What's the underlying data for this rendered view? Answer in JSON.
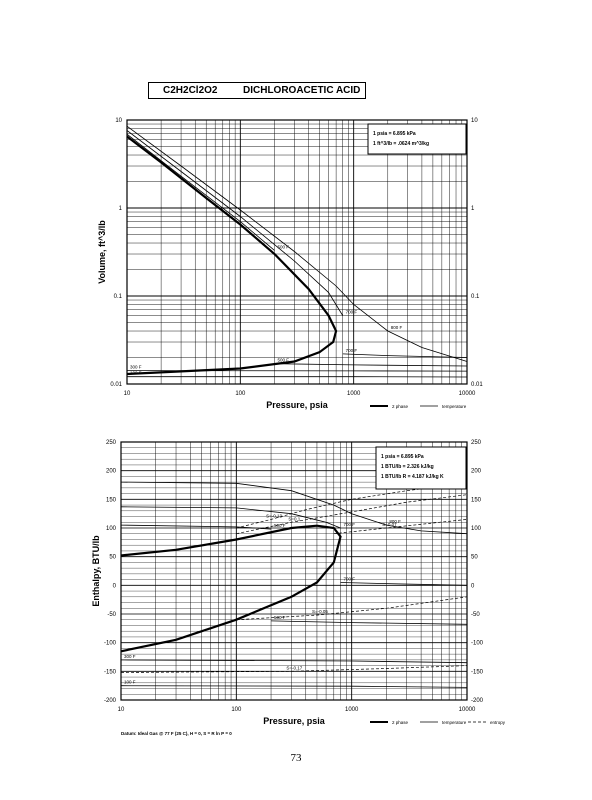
{
  "title": {
    "formula": "C2H2Cl2O2",
    "name": "DICHLOROACETIC ACID"
  },
  "page_number": "73",
  "chart_data": [
    {
      "type": "line",
      "xlabel": "Pressure,  psia",
      "ylabel": "Volume, ft^3/lb",
      "xscale": "log",
      "yscale": "log",
      "xlim": [
        10,
        10000
      ],
      "ylim": [
        0.01,
        10
      ],
      "x_ticks": [
        "10",
        "100",
        "1000",
        "10000"
      ],
      "y_ticks_left": [
        "0.01",
        "0.1",
        "1",
        "10"
      ],
      "y_ticks_right": [
        "0.01",
        "0.1",
        "1",
        "10"
      ],
      "conversion_box": [
        "1 psia  =  6.895 kPa",
        "1 ft^3/lb  =  .0624 m^3/kg"
      ],
      "legend": {
        "two_phase": "2 phase",
        "temperature": "temperature"
      },
      "isotherm_labels": [
        "800 F",
        "700 F",
        "500 F",
        "300 F",
        "100 F"
      ],
      "series": [
        {
          "kind": "two-phase",
          "name": "2 phase",
          "points": [
            [
              10,
              6.5
            ],
            [
              20,
              3.3
            ],
            [
              50,
              1.3
            ],
            [
              100,
              0.65
            ],
            [
              200,
              0.3
            ],
            [
              400,
              0.12
            ],
            [
              600,
              0.06
            ],
            [
              700,
              0.04
            ],
            [
              660,
              0.03
            ],
            [
              500,
              0.023
            ],
            [
              300,
              0.018
            ],
            [
              100,
              0.015
            ],
            [
              10,
              0.013
            ]
          ]
        },
        {
          "kind": "temperature",
          "label": "800 F",
          "points": [
            [
              10,
              8.5
            ],
            [
              30,
              3.0
            ],
            [
              100,
              0.95
            ],
            [
              300,
              0.32
            ],
            [
              700,
              0.13
            ],
            [
              1000,
              0.08
            ],
            [
              2000,
              0.04
            ],
            [
              4000,
              0.026
            ],
            [
              10000,
              0.018
            ]
          ]
        },
        {
          "kind": "temperature",
          "label": "700 F",
          "points": [
            [
              10,
              7.6
            ],
            [
              30,
              2.6
            ],
            [
              100,
              0.8
            ],
            [
              300,
              0.25
            ],
            [
              600,
              0.11
            ],
            [
              800,
              0.06
            ]
          ]
        },
        {
          "kind": "temperature",
          "label": "700 F",
          "points": [
            [
              800,
              0.022
            ],
            [
              2000,
              0.021
            ],
            [
              10000,
              0.02
            ]
          ]
        },
        {
          "kind": "temperature",
          "label": "500 F",
          "points": [
            [
              10,
              6.9
            ],
            [
              30,
              2.3
            ],
            [
              100,
              0.7
            ],
            [
              200,
              0.33
            ]
          ]
        },
        {
          "kind": "temperature",
          "label": "500 F",
          "points": [
            [
              200,
              0.017
            ],
            [
              1000,
              0.0165
            ],
            [
              10000,
              0.016
            ]
          ]
        },
        {
          "kind": "temperature",
          "label": "300 F",
          "points": [
            [
              10,
              0.0142
            ],
            [
              1000,
              0.0141
            ],
            [
              10000,
              0.014
            ]
          ]
        },
        {
          "kind": "temperature",
          "label": "100 F",
          "points": [
            [
              10,
              0.0121
            ],
            [
              1000,
              0.0121
            ],
            [
              10000,
              0.012
            ]
          ]
        }
      ]
    },
    {
      "type": "line",
      "xlabel": "Pressure,  psia",
      "ylabel": "Enthalpy, BTU/lb",
      "xscale": "log",
      "xlim": [
        10,
        10000
      ],
      "ylim": [
        -200,
        250
      ],
      "x_ticks": [
        "10",
        "100",
        "1000",
        "10000"
      ],
      "y_ticks_left": [
        "-200",
        "-150",
        "-100",
        "-50",
        "0",
        "50",
        "100",
        "150",
        "200",
        "250"
      ],
      "y_ticks_right": [
        "-200",
        "-150",
        "-100",
        "-50",
        "0",
        "50",
        "100",
        "150",
        "200",
        "250"
      ],
      "conversion_box": [
        "1 psia  =  6.895 kPa",
        "1 BTU/lb  =  2.326 kJ/kg",
        "1 BTU/lb R  =  4.187 kJ/kg K"
      ],
      "footnote": "Datum: Ideal Gas @ 77 F (25 C),  H = 0,  S = R ln P = 0",
      "legend": {
        "two_phase": "2 phase",
        "temperature": "temperature",
        "entropy": "entropy"
      },
      "isotherm_labels": [
        "800 F",
        "700 F",
        "500 F",
        "300 F",
        "100 F"
      ],
      "entropy_labels": [
        "S=-0.13",
        "S=0.1",
        "S=0.07",
        "S=-0.05",
        "S=-0.17"
      ],
      "series": [
        {
          "kind": "two-phase",
          "name": "2 phase",
          "points": [
            [
              10,
              52
            ],
            [
              30,
              62
            ],
            [
              100,
              80
            ],
            [
              300,
              100
            ],
            [
              500,
              104
            ],
            [
              700,
              100
            ],
            [
              800,
              85
            ],
            [
              700,
              40
            ],
            [
              500,
              5
            ],
            [
              300,
              -20
            ],
            [
              100,
              -60
            ],
            [
              30,
              -95
            ],
            [
              10,
              -115
            ]
          ]
        },
        {
          "kind": "temperature",
          "label": "800 F",
          "points": [
            [
              10,
              180
            ],
            [
              100,
              178
            ],
            [
              300,
              165
            ],
            [
              700,
              140
            ],
            [
              1000,
              125
            ],
            [
              2000,
              105
            ],
            [
              4000,
              95
            ],
            [
              10000,
              90
            ]
          ]
        },
        {
          "kind": "temperature",
          "label": "700 F",
          "points": [
            [
              10,
              137
            ],
            [
              100,
              135
            ],
            [
              300,
              125
            ],
            [
              600,
              110
            ],
            [
              800,
              100
            ]
          ]
        },
        {
          "kind": "temperature",
          "label": "700 F",
          "points": [
            [
              800,
              5
            ],
            [
              2000,
              3
            ],
            [
              10000,
              0
            ]
          ]
        },
        {
          "kind": "temperature",
          "label": "500 F",
          "points": [
            [
              10,
              105
            ],
            [
              100,
              102
            ],
            [
              200,
              98
            ]
          ]
        },
        {
          "kind": "temperature",
          "label": "500 F",
          "points": [
            [
              200,
              -62
            ],
            [
              1000,
              -65
            ],
            [
              10000,
              -68
            ]
          ]
        },
        {
          "kind": "temperature",
          "label": "300 F",
          "points": [
            [
              10,
              -130
            ],
            [
              1000,
              -132
            ],
            [
              10000,
              -135
            ]
          ]
        },
        {
          "kind": "temperature",
          "label": "100 F",
          "points": [
            [
              10,
              -175
            ],
            [
              1000,
              -176
            ],
            [
              10000,
              -178
            ]
          ]
        },
        {
          "kind": "entropy",
          "label": "S=-0.13",
          "points": [
            [
              100,
              100
            ],
            [
              200,
              115
            ],
            [
              400,
              132
            ],
            [
              1000,
              150
            ],
            [
              3000,
              165
            ],
            [
              10000,
              178
            ]
          ]
        },
        {
          "kind": "entropy",
          "label": "S=0.1",
          "points": [
            [
              100,
              90
            ],
            [
              300,
              110
            ],
            [
              1000,
              128
            ],
            [
              3000,
              145
            ],
            [
              10000,
              158
            ]
          ]
        },
        {
          "kind": "entropy",
          "label": "S=0.07",
          "points": [
            [
              700,
              90
            ],
            [
              2000,
              100
            ],
            [
              10000,
              115
            ]
          ]
        },
        {
          "kind": "entropy",
          "label": "S=-0.05",
          "points": [
            [
              100,
              -60
            ],
            [
              500,
              -52
            ],
            [
              2000,
              -40
            ],
            [
              10000,
              -20
            ]
          ]
        },
        {
          "kind": "entropy",
          "label": "S=-0.17",
          "points": [
            [
              10,
              -152
            ],
            [
              300,
              -150
            ],
            [
              2000,
              -145
            ],
            [
              10000,
              -140
            ]
          ]
        }
      ]
    }
  ]
}
